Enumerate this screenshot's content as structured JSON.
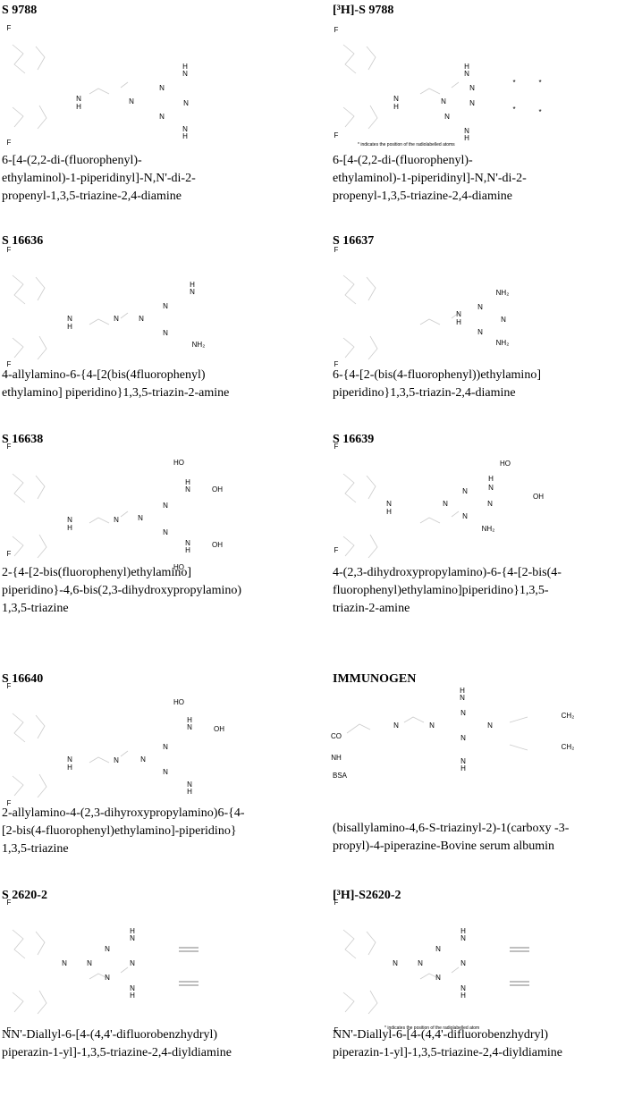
{
  "panels": [
    {
      "title": "S 9788",
      "atoms": [
        "F",
        "H",
        "N",
        "N",
        "N",
        "N",
        "H",
        "N",
        "N",
        "N",
        "H",
        "F"
      ],
      "name": [
        "6-[4-(2,2-di-(fluorophenyl)-",
        "ethylaminol)-1-piperidinyl]-N,N'-di-2-",
        "propenyl-1,3,5-triazine-2,4-diamine"
      ]
    },
    {
      "title": "[³H]-S 9788",
      "atoms": [
        "F",
        "H",
        "N",
        "N",
        "N",
        "N",
        "H",
        "N",
        "N",
        "N",
        "H",
        "*",
        "*",
        "*",
        "*",
        "F"
      ],
      "note": "* indicates the position of the radiolabelled atoms",
      "name": [
        "6-[4-(2,2-di-(fluorophenyl)-",
        "ethylaminol)-1-piperidinyl]-N,N'-di-2-",
        "propenyl-1,3,5-triazine-2,4-diamine"
      ]
    },
    {
      "title": "S 16636",
      "atoms": [
        "F",
        "H",
        "N",
        "N",
        "N",
        "N",
        "H",
        "N",
        "N",
        "NH₂",
        "F"
      ],
      "name": [
        "4-allylamino-6-{4-[2(bis(4fluorophenyl)",
        "ethylamino] piperidino}1,3,5-triazin-2-amine"
      ]
    },
    {
      "title": "S 16637",
      "atoms": [
        "F",
        "NH₂",
        "N",
        "N",
        "H",
        "N",
        "N",
        "NH₂",
        "F"
      ],
      "name": [
        "6-{4-[2-(bis(4-fluorophenyl))ethylamino]",
        "piperidino}1,3,5-triazin-2,4-diamine"
      ]
    },
    {
      "title": "S 16638",
      "atoms": [
        "F",
        "HO",
        "H",
        "N",
        "OH",
        "N",
        "N",
        "N",
        "N",
        "H",
        "N",
        "N",
        "H",
        "OH",
        "HO",
        "F"
      ],
      "name": [
        "2-{4-[2-bis(fluorophenyl)ethylamino]",
        "piperidino}-4,6-bis(2,3-dihydroxypropylamino)",
        "1,3,5-triazine"
      ]
    },
    {
      "title": "S 16639",
      "atoms": [
        "F",
        "HO",
        "H",
        "N",
        "OH",
        "N",
        "N",
        "N",
        "H",
        "N",
        "N",
        "NH₂",
        "F"
      ],
      "name": [
        "4-(2,3-dihydroxypropylamino)-6-{4-[2-bis(4-",
        "fluorophenyl)ethylamino]piperidino}1,3,5-",
        "triazin-2-amine"
      ]
    },
    {
      "title": "S 16640",
      "atoms": [
        "F",
        "HO",
        "H",
        "N",
        "OH",
        "N",
        "N",
        "N",
        "N",
        "H",
        "N",
        "N",
        "H",
        "F"
      ],
      "name": [
        "2-allylamino-4-(2,3-dihyroxypropylamino)6-{4-",
        "[2-bis(4-fluorophenyl)ethylamino]-piperidino}",
        "1,3,5-triazine"
      ]
    },
    {
      "title": "IMMUNOGEN",
      "atoms": [
        "H",
        "N",
        "CH₂",
        "N",
        "N",
        "N",
        "N",
        "CO",
        "N",
        "CH₂",
        "NH",
        "N",
        "H",
        "BSA"
      ],
      "name": [
        "(bisallylamino-4,6-S-triazinyl-2)-1(carboxy   -3-",
        "propyl)-4-piperazine-Bovine serum albumin"
      ]
    },
    {
      "title": "S 2620-2",
      "atoms": [
        "F",
        "H",
        "N",
        "N",
        "N",
        "N",
        "N",
        "N",
        "N",
        "H",
        "F"
      ],
      "name": [
        "NN'-Diallyl-6-[4-(4,4'-difluorobenzhydryl)",
        "piperazin-1-yl]-1,3,5-triazine-2,4-diyldiamine"
      ]
    },
    {
      "title": "[³H]-S2620-2",
      "atoms": [
        "F",
        "H",
        "N",
        "N",
        "N",
        "N",
        "N",
        "N",
        "N",
        "H",
        "F"
      ],
      "note": "* indicates the position of the radiolabelled atom",
      "name": [
        "NN'-Diallyl-6-[4-(4,4'-difluorobenzhydryl)",
        "piperazin-1-yl]-1,3,5-triazine-2,4-diyldiamine"
      ]
    }
  ]
}
